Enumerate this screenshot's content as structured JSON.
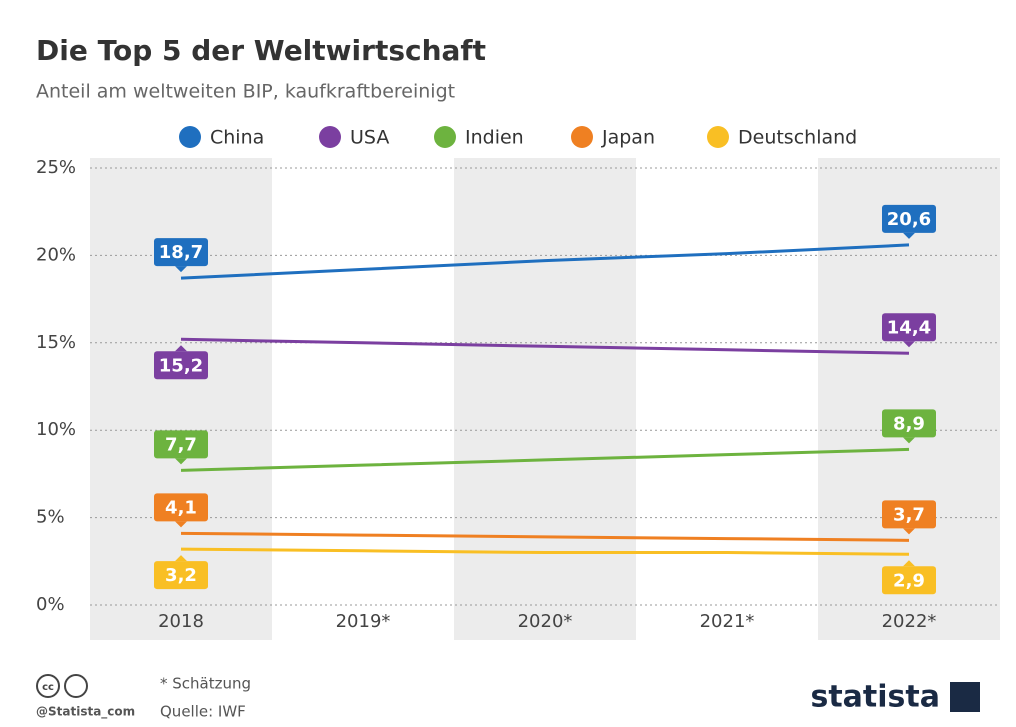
{
  "chart_data": {
    "type": "line",
    "title": "Die Top 5 der Weltwirtschaft",
    "subtitle": "Anteil am weltweiten BIP, kaufkraftbereinigt",
    "categories": [
      "2018",
      "2019*",
      "2020*",
      "2021*",
      "2022*"
    ],
    "series": [
      {
        "name": "China",
        "color": "#1f6fbf",
        "values": [
          18.7,
          19.2,
          19.7,
          20.1,
          20.6
        ],
        "value_labels": [
          "18,7",
          null,
          null,
          null,
          "20,6"
        ]
      },
      {
        "name": "USA",
        "color": "#7b3fa0",
        "values": [
          15.2,
          15.0,
          14.8,
          14.6,
          14.4
        ],
        "value_labels": [
          "15,2",
          null,
          null,
          null,
          "14,4"
        ]
      },
      {
        "name": "Indien",
        "color": "#6db33f",
        "values": [
          7.7,
          8.0,
          8.3,
          8.6,
          8.9
        ],
        "value_labels": [
          "7,7",
          null,
          null,
          null,
          "8,9"
        ]
      },
      {
        "name": "Japan",
        "color": "#ef8022",
        "values": [
          4.1,
          4.0,
          3.9,
          3.8,
          3.7
        ],
        "value_labels": [
          "4,1",
          null,
          null,
          null,
          "3,7"
        ]
      },
      {
        "name": "Deutschland",
        "color": "#f9bf24",
        "values": [
          3.2,
          3.1,
          3.0,
          3.0,
          2.9
        ],
        "value_labels": [
          "3,2",
          null,
          null,
          null,
          "2,9"
        ]
      }
    ],
    "ylim": [
      0,
      25
    ],
    "yticks": [
      {
        "value": 0,
        "label": "0%"
      },
      {
        "value": 5,
        "label": "5%"
      },
      {
        "value": 10,
        "label": "10%"
      },
      {
        "value": 15,
        "label": "15%"
      },
      {
        "value": 20,
        "label": "20%"
      },
      {
        "value": 25,
        "label": "25%"
      }
    ],
    "grid": true,
    "legend": "top"
  },
  "footer": {
    "note": "* Schätzung",
    "credit": "@Statista_com",
    "source": "Quelle: IWF",
    "brand": "statista"
  }
}
